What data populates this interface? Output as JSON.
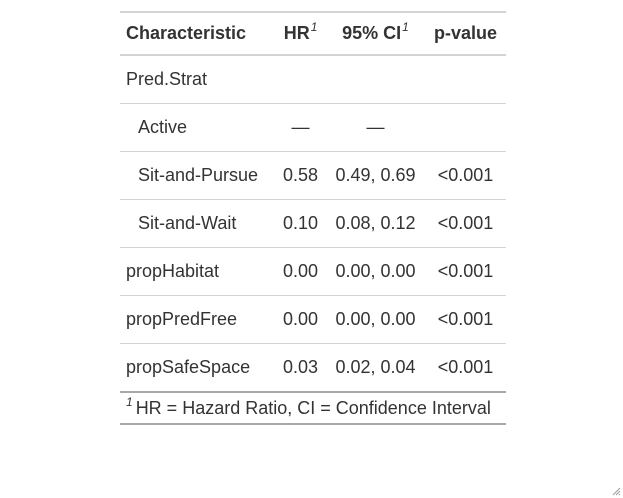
{
  "table": {
    "headers": {
      "characteristic": "Characteristic",
      "hr": "HR",
      "hr_note": "1",
      "ci": "95% CI",
      "ci_note": "1",
      "pvalue": "p-value"
    },
    "rows": [
      {
        "label": "Pred.Strat",
        "hr": "",
        "ci": "",
        "p": ""
      },
      {
        "label": "Active",
        "hr": "—",
        "ci": "—",
        "p": ""
      },
      {
        "label": "Sit-and-Pursue",
        "hr": "0.58",
        "ci": "0.49, 0.69",
        "p": "<0.001"
      },
      {
        "label": "Sit-and-Wait",
        "hr": "0.10",
        "ci": "0.08, 0.12",
        "p": "<0.001"
      },
      {
        "label": "propHabitat",
        "hr": "0.00",
        "ci": "0.00, 0.00",
        "p": "<0.001"
      },
      {
        "label": "propPredFree",
        "hr": "0.00",
        "ci": "0.00, 0.00",
        "p": "<0.001"
      },
      {
        "label": "propSafeSpace",
        "hr": "0.03",
        "ci": "0.02, 0.04",
        "p": "<0.001"
      }
    ],
    "footnote": {
      "marker": "1",
      "text": "HR = Hazard Ratio, CI = Confidence Interval"
    }
  },
  "icons": {
    "resize": "resize-grip-icon"
  },
  "colors": {
    "text": "#333333",
    "rule_light": "#d3d3d3",
    "rule_dark": "#a8a8a8"
  }
}
